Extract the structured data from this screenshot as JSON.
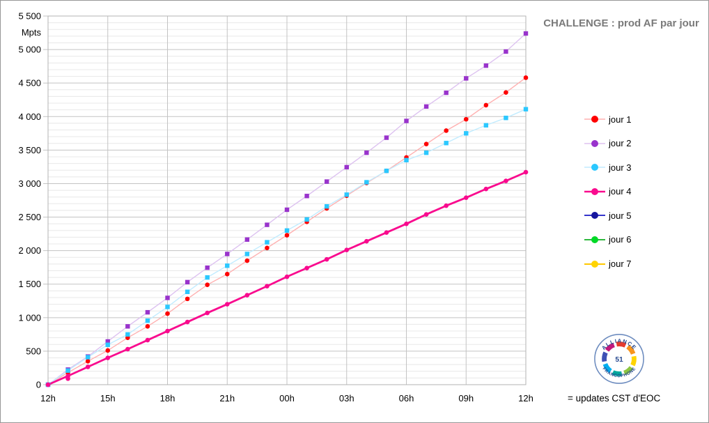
{
  "header": {
    "title": "CHALLENGE : prod AF par jour",
    "title_color": "#7a7a7a"
  },
  "chart_data": {
    "type": "line",
    "title": "CHALLENGE : prod AF par jour",
    "ylabel": "Mpts",
    "xlabel": "",
    "legend_position": "right",
    "grid": "horizontal minor every 100 / major every 500, vertical major every 3h",
    "ylim": [
      0,
      5500
    ],
    "y_major_step": 500,
    "y_minor_step": 100,
    "y_tick_labels": [
      "0",
      "500",
      "1 000",
      "1 500",
      "2 000",
      "2 500",
      "3 000",
      "3 500",
      "4 000",
      "4 500",
      "5 000",
      "5 500"
    ],
    "x_tick_labels": [
      "12h",
      "15h",
      "18h",
      "21h",
      "00h",
      "03h",
      "06h",
      "09h",
      "12h"
    ],
    "x_major_step_hours": 3,
    "hours": [
      0,
      1,
      2,
      3,
      4,
      5,
      6,
      7,
      8,
      9,
      10,
      11,
      12,
      13,
      14,
      15,
      16,
      17,
      18,
      19,
      20,
      21,
      22,
      23,
      24
    ],
    "colors": {
      "grid_minor": "#e8e8e8",
      "grid_major": "#c3c3c3",
      "plot_border": "#b3b3b3",
      "axis_text": "#000000"
    },
    "series": [
      {
        "name": "jour 1",
        "marker_color": "#fe0000",
        "line_color": "#ffb0b0",
        "line_width": 1.4,
        "marker_shape": "circle",
        "values": [
          0,
          180,
          350,
          510,
          700,
          870,
          1060,
          1280,
          1490,
          1650,
          1850,
          2040,
          2230,
          2430,
          2630,
          2820,
          3010,
          3190,
          3390,
          3590,
          3790,
          3960,
          4170,
          4360,
          4580
        ]
      },
      {
        "name": "jour 2",
        "marker_color": "#9933cc",
        "line_color": "#ddc2f0",
        "line_width": 1.4,
        "marker_shape": "square",
        "values": [
          0,
          225,
          420,
          645,
          870,
          1080,
          1295,
          1530,
          1745,
          1950,
          2165,
          2385,
          2610,
          2815,
          3030,
          3245,
          3460,
          3685,
          3935,
          4150,
          4355,
          4570,
          4760,
          4970,
          5240
        ]
      },
      {
        "name": "jour 3",
        "marker_color": "#2bc8ff",
        "line_color": "#c2ecff",
        "line_width": 1.4,
        "marker_shape": "square",
        "values": [
          0,
          210,
          410,
          595,
          750,
          955,
          1160,
          1385,
          1600,
          1775,
          1950,
          2125,
          2300,
          2465,
          2660,
          2835,
          3020,
          3190,
          3350,
          3460,
          3605,
          3750,
          3870,
          3980,
          4110
        ]
      },
      {
        "name": "jour 4",
        "marker_color": "#f90a8e",
        "line_color": "#f90a8e",
        "line_width": 2.8,
        "marker_shape": "circle",
        "extra_markers": [
          [
            1,
            90
          ]
        ],
        "values": [
          0,
          130,
          265,
          400,
          530,
          665,
          800,
          935,
          1070,
          1200,
          1335,
          1470,
          1610,
          1740,
          1870,
          2010,
          2140,
          2270,
          2400,
          2540,
          2670,
          2790,
          2920,
          3040,
          3170
        ]
      },
      {
        "name": "jour 5",
        "marker_color": "#16169e",
        "line_color": "#3535cc",
        "line_width": 2,
        "marker_shape": "circle",
        "values": []
      },
      {
        "name": "jour 6",
        "marker_color": "#00d926",
        "line_color": "#2eb83d",
        "line_width": 2,
        "marker_shape": "circle",
        "values": []
      },
      {
        "name": "jour 7",
        "marker_color": "#ffd400",
        "line_color": "#ffc800",
        "line_width": 2,
        "marker_shape": "circle",
        "values": []
      }
    ]
  },
  "logo": {
    "top_text": "ALLIANCE",
    "bottom_text": "FRANCOPHONE",
    "center_text": "51",
    "text_color": "#27498f",
    "border_color": "#6d8cbf",
    "ring_colors": [
      "#e63b2e",
      "#f7941d",
      "#ffd400",
      "#8dc63f",
      "#00a99d",
      "#00aeef",
      "#3f51b5",
      "#c2187c"
    ]
  },
  "footer": {
    "caption": "= updates CST d'EOC"
  }
}
